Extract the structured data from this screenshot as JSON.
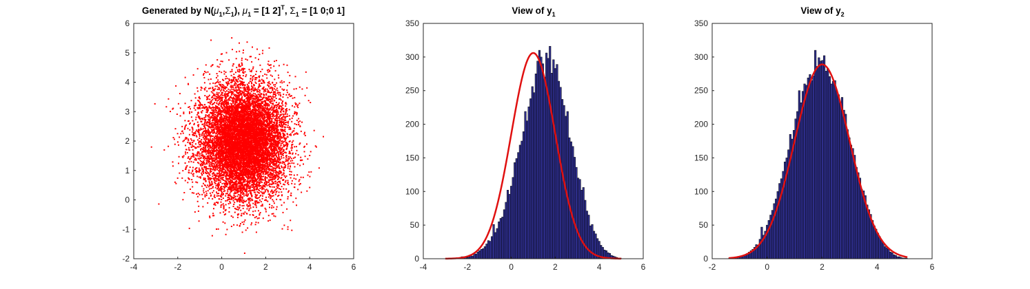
{
  "chart_data": [
    {
      "type": "scatter",
      "title": "Generated by N(μ1,Σ1), μ1 = [1 2]T, Σ1 = [1 0;0 1]",
      "title_parts": {
        "prefix": "Generated by N(",
        "mu": "μ",
        "sub1": "1",
        "comma": ",",
        "sigma": "Σ",
        "sub2": "1",
        "mid": "), ",
        "mu2": "μ",
        "sub3": "1",
        "eq1": " = [1 2]",
        "sup": "T",
        "sep": ", ",
        "sigma2": "Σ",
        "sub4": "1",
        "eq2": " = [1 0;0 1]"
      },
      "xlim": [
        -4,
        6
      ],
      "ylim": [
        -2,
        6
      ],
      "xticks": [
        "-4",
        "-2",
        "0",
        "2",
        "4",
        "6"
      ],
      "yticks": [
        "-2",
        "-1",
        "0",
        "1",
        "2",
        "3",
        "4",
        "5",
        "6"
      ],
      "point_color": "#ff0000",
      "n_points": 10000,
      "distribution": {
        "mean": [
          1,
          2
        ],
        "cov": [
          [
            1,
            0
          ],
          [
            0,
            1
          ]
        ]
      },
      "grid": false
    },
    {
      "type": "bar",
      "title": "View of y1",
      "title_parts": {
        "text": "View of y",
        "sub": "1"
      },
      "xlim": [
        -4,
        6
      ],
      "ylim": [
        0,
        350
      ],
      "xticks": [
        "-4",
        "-2",
        "0",
        "2",
        "4",
        "6"
      ],
      "yticks": [
        "0",
        "50",
        "100",
        "150",
        "200",
        "250",
        "300",
        "350"
      ],
      "bar_color": "#2e2e8c",
      "curve_color": "#e01010",
      "bins": {
        "start": -3.0,
        "width": 0.08,
        "count": 100
      },
      "fit_curve": {
        "mean": 1.0,
        "std": 1.0,
        "peak": 306
      },
      "values": [
        0,
        0,
        0,
        0,
        0,
        0,
        1,
        0,
        1,
        3,
        3,
        2,
        4,
        5,
        6,
        4,
        8,
        7,
        10,
        12,
        14,
        15,
        18,
        22,
        27,
        26,
        33,
        51,
        39,
        45,
        55,
        60,
        62,
        73,
        84,
        102,
        96,
        108,
        121,
        143,
        149,
        158,
        169,
        175,
        189,
        219,
        205,
        226,
        238,
        256,
        247,
        275,
        294,
        310,
        300,
        290,
        270,
        306,
        298,
        316,
        276,
        296,
        283,
        289,
        264,
        255,
        237,
        228,
        212,
        219,
        180,
        174,
        167,
        151,
        136,
        120,
        118,
        102,
        106,
        87,
        71,
        65,
        49,
        51,
        41,
        37,
        30,
        26,
        20,
        17,
        13,
        12,
        9,
        8,
        5,
        4,
        3,
        2,
        1,
        1
      ]
    },
    {
      "type": "bar",
      "title": "View of y2",
      "title_parts": {
        "text": "View of y",
        "sub": "2"
      },
      "xlim": [
        -2,
        6
      ],
      "ylim": [
        0,
        350
      ],
      "xticks": [
        "-2",
        "0",
        "2",
        "4",
        "6"
      ],
      "yticks": [
        "0",
        "50",
        "100",
        "150",
        "200",
        "250",
        "300",
        "350"
      ],
      "bar_color": "#2e2e8c",
      "curve_color": "#e01010",
      "bins": {
        "start": -1.4,
        "width": 0.065,
        "count": 100
      },
      "fit_curve": {
        "mean": 2.0,
        "std": 1.0,
        "peak": 289
      },
      "values": [
        1,
        0,
        0,
        1,
        2,
        3,
        3,
        4,
        5,
        6,
        8,
        10,
        12,
        14,
        17,
        21,
        20,
        29,
        47,
        35,
        41,
        50,
        57,
        65,
        72,
        82,
        89,
        100,
        112,
        119,
        130,
        144,
        150,
        162,
        185,
        178,
        191,
        208,
        219,
        250,
        232,
        249,
        260,
        258,
        269,
        274,
        265,
        272,
        310,
        286,
        299,
        294,
        295,
        302,
        279,
        283,
        271,
        260,
        264,
        265,
        250,
        244,
        232,
        240,
        221,
        215,
        192,
        180,
        169,
        164,
        154,
        136,
        128,
        120,
        103,
        101,
        94,
        80,
        73,
        66,
        57,
        49,
        44,
        38,
        33,
        28,
        23,
        18,
        16,
        14,
        10,
        9,
        6,
        5,
        3,
        3,
        2,
        1,
        1,
        1
      ]
    }
  ]
}
